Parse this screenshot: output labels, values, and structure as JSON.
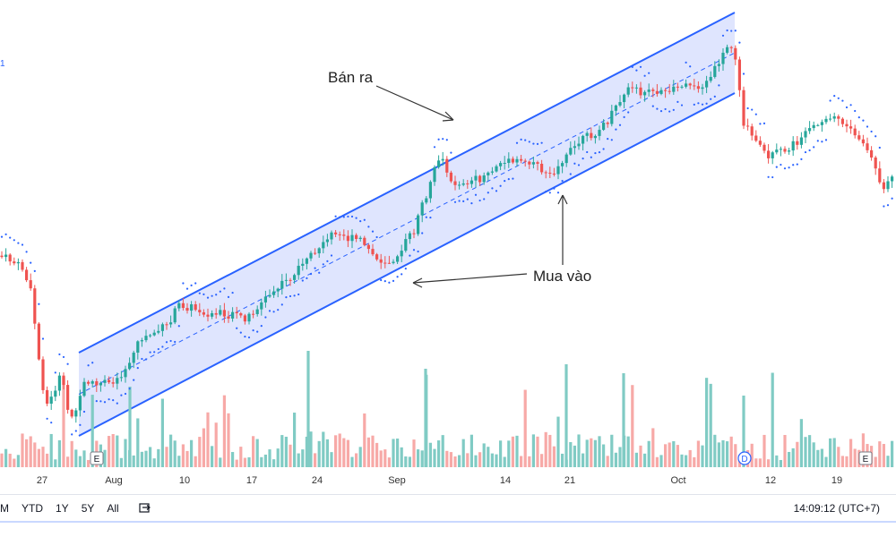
{
  "chart_data": {
    "type": "candlestick",
    "x_ticks": [
      "27",
      "Aug",
      "10",
      "17",
      "24",
      "Sep",
      "14",
      "21",
      "Oct",
      "12",
      "19"
    ],
    "event_markers": [
      {
        "label": "E",
        "at": "27"
      },
      {
        "label": "D",
        "at": "Oct"
      },
      {
        "label": "E",
        "at": "19"
      }
    ],
    "annotations": [
      {
        "text": "Bán ra"
      },
      {
        "text": "Mua vào"
      }
    ],
    "channel": {
      "type": "ascending parallel channel",
      "color": "#2962ff",
      "fill": "#d9e1fe"
    },
    "indicators": [
      "Parabolic SAR (blue dots)",
      "Volume"
    ],
    "colors": {
      "up": "#26a69a",
      "down": "#ef5350",
      "up_volume": "#80cbc4",
      "down_volume": "#f7a9a7"
    }
  },
  "toolbar": {
    "ranges": [
      "M",
      "YTD",
      "1Y",
      "5Y",
      "All"
    ],
    "compare_icon": "compare-icon",
    "clock": "14:09:12 (UTC+7)"
  },
  "left_edge_label": "1"
}
